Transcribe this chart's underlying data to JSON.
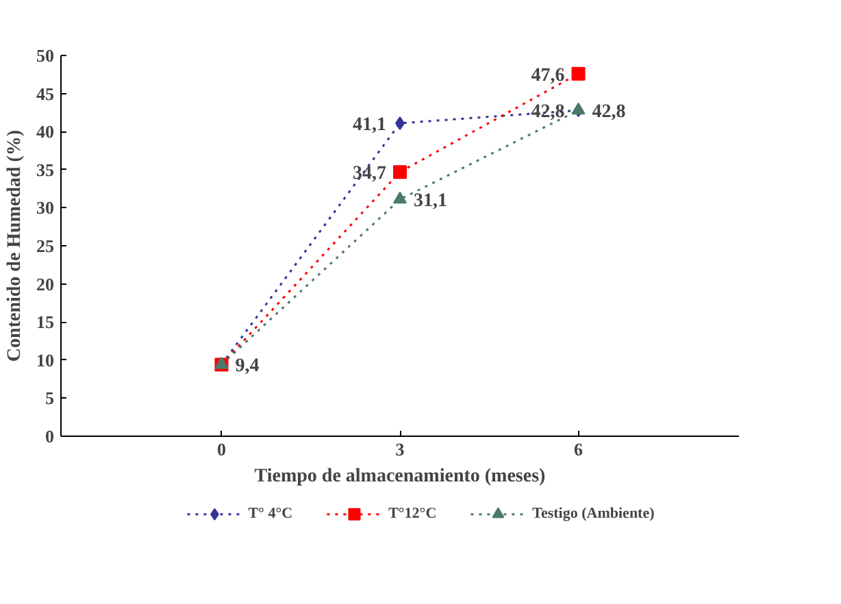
{
  "chart_data": {
    "type": "line",
    "xlabel": "Tiempo de almacenamiento (meses)",
    "ylabel": "Contenido de Humedad (%)",
    "categories": [
      "0",
      "3",
      "6"
    ],
    "ylim": [
      0,
      50
    ],
    "yticks": [
      0,
      5,
      10,
      15,
      20,
      25,
      30,
      35,
      40,
      45,
      50
    ],
    "grid": false,
    "legend": "bottom",
    "line_style": "dotted",
    "series": [
      {
        "name": "T° 4°C",
        "color": "#333399",
        "marker": "diamond",
        "values": [
          9.4,
          41.1,
          42.8
        ],
        "value_labels": [
          null,
          "41,1",
          "42,8"
        ]
      },
      {
        "name": "T°12°C",
        "color": "#ff0000",
        "marker": "square",
        "values": [
          9.4,
          34.7,
          47.6
        ],
        "value_labels": [
          null,
          "34,7",
          "47,6"
        ]
      },
      {
        "name": "Testigo (Ambiente)",
        "color": "#4a7a6a",
        "marker": "triangle",
        "values": [
          9.4,
          31.1,
          42.8
        ],
        "value_labels": [
          "9,4",
          "31,1",
          "42,8"
        ]
      }
    ]
  }
}
